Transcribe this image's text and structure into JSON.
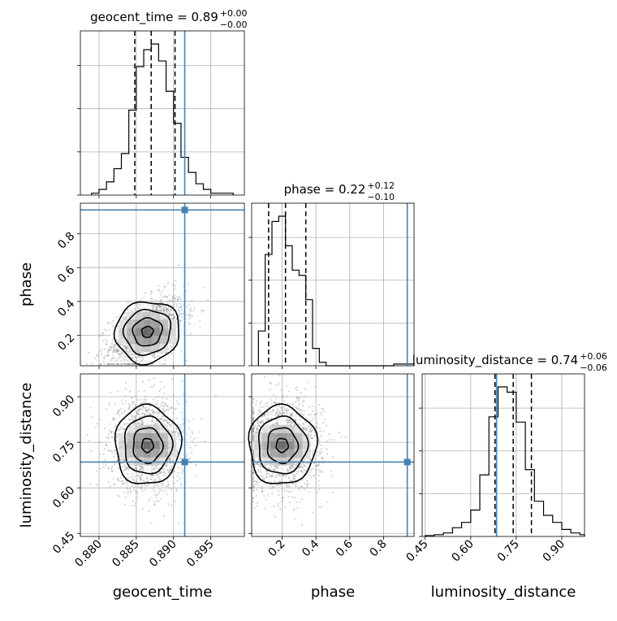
{
  "chart_data": {
    "type": "corner",
    "parameters": [
      "geocent_time",
      "phase",
      "luminosity_distance"
    ],
    "titles": {
      "geocent_time": {
        "label": "geocent_time = 0.89",
        "sup": "+0.00",
        "sub": "−0.00"
      },
      "phase": {
        "label": "phase = 0.22",
        "sup": "+0.12",
        "sub": "−0.10"
      },
      "luminosity_distance": {
        "label": "luminosity_distance = 0.74",
        "sup": "+0.06",
        "sub": "−0.06"
      }
    },
    "ranges": {
      "geocent_time": [
        0.8775,
        0.8995
      ],
      "phase": [
        0.02,
        0.98
      ],
      "luminosity_distance": [
        0.44,
        0.975
      ]
    },
    "ticks": {
      "geocent_time": [
        "0.880",
        "0.885",
        "0.890",
        "0.895"
      ],
      "phase": [
        "0.2",
        "0.4",
        "0.6",
        "0.8"
      ],
      "luminosity_distance": [
        "0.45",
        "0.60",
        "0.75",
        "0.90"
      ]
    },
    "tick_values": {
      "geocent_time": [
        0.88,
        0.885,
        0.89,
        0.895
      ],
      "phase": [
        0.2,
        0.4,
        0.6,
        0.8
      ],
      "luminosity_distance": [
        0.45,
        0.6,
        0.75,
        0.9
      ]
    },
    "truths": {
      "geocent_time": 0.8915,
      "phase": 0.94,
      "luminosity_distance": 0.685
    },
    "quantiles": {
      "geocent_time": [
        0.8848,
        0.887,
        0.8902
      ],
      "phase": [
        0.12,
        0.22,
        0.34
      ],
      "luminosity_distance": [
        0.68,
        0.74,
        0.8
      ]
    },
    "histograms": {
      "geocent_time": {
        "bins": [
          0.879,
          0.88,
          0.881,
          0.882,
          0.883,
          0.884,
          0.885,
          0.886,
          0.887,
          0.888,
          0.889,
          0.89,
          0.891,
          0.892,
          0.893,
          0.894,
          0.895,
          0.896,
          0.897,
          0.898
        ],
        "counts": [
          1,
          3,
          7,
          14,
          22,
          45,
          68,
          77,
          80,
          71,
          55,
          38,
          20,
          12,
          6,
          3,
          1,
          1,
          1
        ]
      },
      "phase": {
        "bins": [
          0.06,
          0.1,
          0.14,
          0.18,
          0.22,
          0.26,
          0.3,
          0.34,
          0.38,
          0.42,
          0.46,
          0.5,
          0.54,
          0.58,
          0.62,
          0.66,
          0.7,
          0.74,
          0.78,
          0.82,
          0.86,
          0.9,
          0.94,
          0.98
        ],
        "counts": [
          20,
          64,
          83,
          86,
          69,
          55,
          52,
          38,
          10,
          2,
          0,
          0,
          0,
          0,
          0,
          0,
          0,
          0,
          0,
          0,
          1,
          1,
          1
        ]
      },
      "luminosity_distance": {
        "bins": [
          0.45,
          0.48,
          0.51,
          0.54,
          0.57,
          0.6,
          0.63,
          0.66,
          0.69,
          0.72,
          0.75,
          0.78,
          0.81,
          0.84,
          0.87,
          0.9,
          0.93,
          0.96,
          0.975
        ],
        "counts": [
          0.5,
          1,
          2,
          5,
          8,
          15,
          35,
          68,
          85,
          82,
          65,
          38,
          20,
          12,
          8,
          4,
          2,
          1
        ]
      }
    },
    "contour_levels": [
      "0.5σ",
      "1σ",
      "1.5σ",
      "2σ"
    ],
    "truth_color": "#4682b4",
    "grid": true
  }
}
